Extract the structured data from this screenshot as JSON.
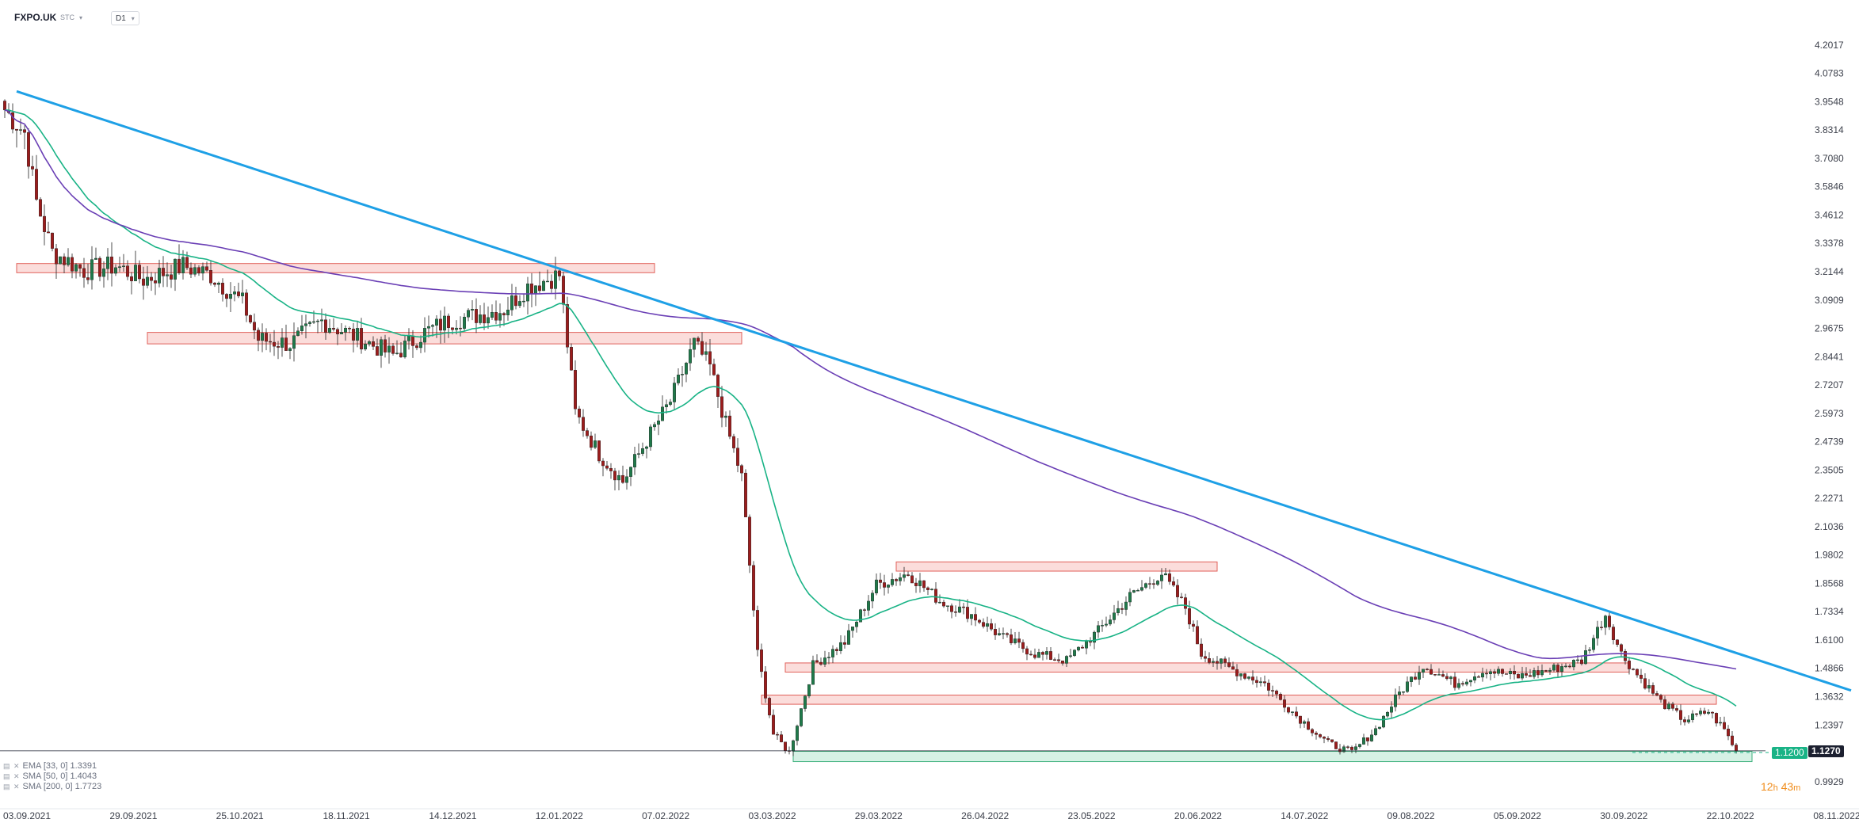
{
  "header": {
    "symbol": "FXPO.UK",
    "source": "STC",
    "timeframe": "D1"
  },
  "indicators": [
    {
      "label": "EMA [33, 0] 1.3391",
      "color": "#19b386"
    },
    {
      "label": "SMA [50, 0] 1.4043",
      "color": "#1ea0e6"
    },
    {
      "label": "SMA [200, 0] 1.7723",
      "color": "#6a3fb5"
    }
  ],
  "colors": {
    "bull": "#1f7a4a",
    "bear": "#9c1c1c",
    "zone_fill": "#fad7d5",
    "zone_stroke": "#e0605a",
    "support_fill": "#cfeee0",
    "support_stroke": "#3bb07a",
    "trend": "#1ea0e6",
    "ema": "#19b386",
    "sma200": "#6a3fb5"
  },
  "price_labels": {
    "bid": "1.1200",
    "last": "1.1270"
  },
  "countdown": {
    "hours": "12",
    "h": "h",
    "minutes": "43",
    "m": "m"
  },
  "chart_data": {
    "type": "candlestick",
    "x_range": [
      "03.09.2021",
      "08.11.2022"
    ],
    "ylim": [
      0.93,
      4.26
    ],
    "y_ticks": [
      "4.2017",
      "4.0783",
      "3.9548",
      "3.8314",
      "3.7080",
      "3.5846",
      "3.4612",
      "3.3378",
      "3.2144",
      "3.0909",
      "2.9675",
      "2.8441",
      "2.7207",
      "2.5973",
      "2.4739",
      "2.3505",
      "2.2271",
      "2.1036",
      "1.9802",
      "1.8568",
      "1.7334",
      "1.6100",
      "1.4866",
      "1.3632",
      "1.2397",
      "1.1270",
      "0.9929"
    ],
    "x_ticks": [
      "03.09.2021",
      "29.09.2021",
      "25.10.2021",
      "18.11.2021",
      "14.12.2021",
      "12.01.2022",
      "07.02.2022",
      "03.03.2022",
      "29.03.2022",
      "26.04.2022",
      "23.05.2022",
      "20.06.2022",
      "14.07.2022",
      "09.08.2022",
      "05.09.2022",
      "30.09.2022",
      "22.10.2022",
      "08.11.2022"
    ],
    "price_path": [
      [
        0,
        3.92
      ],
      [
        5,
        3.82
      ],
      [
        8,
        3.52
      ],
      [
        12,
        3.3
      ],
      [
        20,
        3.22
      ],
      [
        28,
        3.24
      ],
      [
        35,
        3.18
      ],
      [
        45,
        3.24
      ],
      [
        52,
        3.2
      ],
      [
        60,
        3.08
      ],
      [
        64,
        2.92
      ],
      [
        72,
        2.9
      ],
      [
        80,
        3.0
      ],
      [
        90,
        2.92
      ],
      [
        98,
        2.85
      ],
      [
        106,
        2.95
      ],
      [
        112,
        3.0
      ],
      [
        118,
        3.02
      ],
      [
        126,
        3.05
      ],
      [
        132,
        3.15
      ],
      [
        140,
        3.2
      ],
      [
        144,
        2.6
      ],
      [
        150,
        2.42
      ],
      [
        156,
        2.3
      ],
      [
        162,
        2.48
      ],
      [
        168,
        2.65
      ],
      [
        174,
        2.9
      ],
      [
        178,
        2.8
      ],
      [
        182,
        2.55
      ],
      [
        186,
        2.32
      ],
      [
        190,
        1.55
      ],
      [
        194,
        1.2
      ],
      [
        198,
        1.12
      ],
      [
        204,
        1.5
      ],
      [
        212,
        1.6
      ],
      [
        220,
        1.85
      ],
      [
        228,
        1.9
      ],
      [
        236,
        1.78
      ],
      [
        244,
        1.72
      ],
      [
        252,
        1.62
      ],
      [
        260,
        1.55
      ],
      [
        268,
        1.52
      ],
      [
        276,
        1.65
      ],
      [
        284,
        1.8
      ],
      [
        292,
        1.9
      ],
      [
        298,
        1.75
      ],
      [
        302,
        1.55
      ],
      [
        310,
        1.48
      ],
      [
        318,
        1.42
      ],
      [
        326,
        1.28
      ],
      [
        334,
        1.16
      ],
      [
        340,
        1.12
      ],
      [
        346,
        1.22
      ],
      [
        352,
        1.38
      ],
      [
        358,
        1.5
      ],
      [
        366,
        1.42
      ],
      [
        374,
        1.48
      ],
      [
        382,
        1.45
      ],
      [
        390,
        1.48
      ],
      [
        398,
        1.52
      ],
      [
        404,
        1.72
      ],
      [
        408,
        1.55
      ],
      [
        412,
        1.46
      ],
      [
        418,
        1.34
      ],
      [
        424,
        1.26
      ],
      [
        430,
        1.3
      ],
      [
        434,
        1.22
      ],
      [
        437,
        1.127
      ]
    ],
    "ema33_last": 1.3391,
    "sma50_last": 1.4043,
    "sma200_last": 1.7723,
    "trendline": [
      [
        3,
        4.0
      ],
      [
        466,
        1.39
      ]
    ],
    "resistance_zones": [
      {
        "from": 3,
        "to": 164,
        "low": 3.21,
        "high": 3.25
      },
      {
        "from": 36,
        "to": 186,
        "low": 2.9,
        "high": 2.95
      },
      {
        "from": 225,
        "to": 306,
        "low": 1.91,
        "high": 1.95
      },
      {
        "from": 197,
        "to": 410,
        "low": 1.47,
        "high": 1.51
      },
      {
        "from": 191,
        "to": 432,
        "low": 1.33,
        "high": 1.37
      }
    ],
    "support_zone": {
      "from": 199,
      "to": 441,
      "low": 1.08,
      "high": 1.125
    },
    "last_price": 1.127,
    "bid_price": 1.12
  }
}
